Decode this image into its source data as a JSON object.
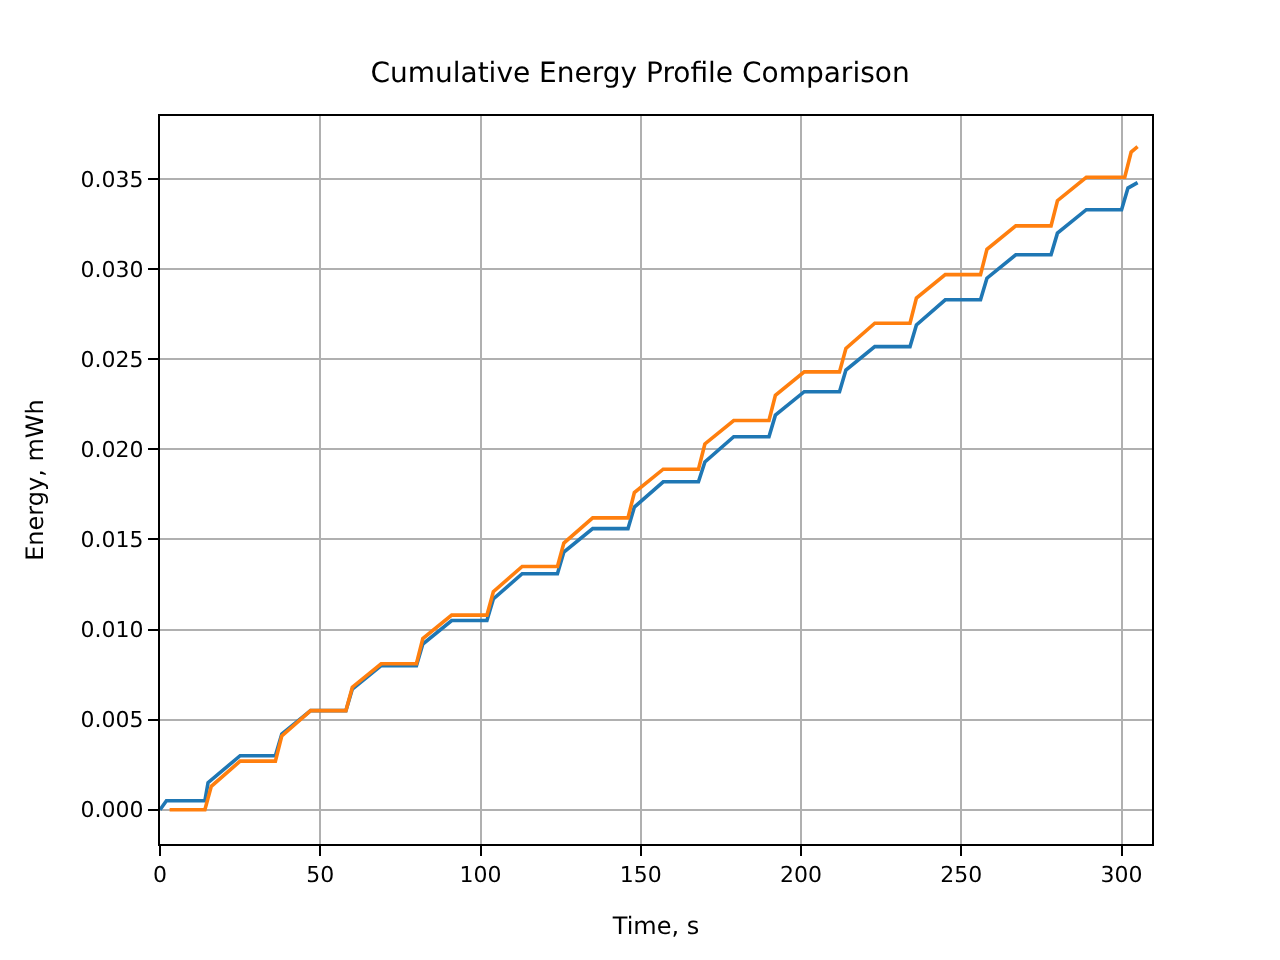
{
  "chart_data": {
    "type": "line",
    "title": "Cumulative Energy Profile Comparison",
    "xlabel": "Time, s",
    "ylabel": "Energy, mWh",
    "xlim": [
      0,
      309.5
    ],
    "ylim": [
      -0.0019,
      0.0385
    ],
    "xticks": [
      0,
      50,
      100,
      150,
      200,
      250,
      300
    ],
    "yticks": [
      {
        "value": 0,
        "label": "0.000"
      },
      {
        "value": 0.005,
        "label": "0.005"
      },
      {
        "value": 0.01,
        "label": "0.010"
      },
      {
        "value": 0.015,
        "label": "0.015"
      },
      {
        "value": 0.02,
        "label": "0.020"
      },
      {
        "value": 0.025,
        "label": "0.025"
      },
      {
        "value": 0.03,
        "label": "0.030"
      },
      {
        "value": 0.035,
        "label": "0.035"
      }
    ],
    "grid": true,
    "marker": "none",
    "line_style": "solid",
    "series": [
      {
        "color": "#1f77b4",
        "x": [
          0,
          2,
          14,
          15,
          25,
          36,
          38,
          47,
          58,
          60,
          69,
          80,
          82,
          91,
          102,
          104,
          113,
          124,
          126,
          135,
          146,
          148,
          157,
          168,
          170,
          179,
          190,
          192,
          201,
          212,
          214,
          223,
          234,
          236,
          245,
          256,
          258,
          267,
          278,
          280,
          289,
          300,
          302,
          305
        ],
        "values": [
          0,
          0.0005,
          0.0005,
          0.0015,
          0.003,
          0.003,
          0.0042,
          0.0055,
          0.0055,
          0.0067,
          0.008,
          0.008,
          0.0092,
          0.0105,
          0.0105,
          0.0117,
          0.0131,
          0.0131,
          0.0143,
          0.0156,
          0.0156,
          0.0168,
          0.0182,
          0.0182,
          0.0193,
          0.0207,
          0.0207,
          0.0219,
          0.0232,
          0.0232,
          0.0244,
          0.0257,
          0.0257,
          0.0269,
          0.0283,
          0.0283,
          0.0295,
          0.0308,
          0.0308,
          0.032,
          0.0333,
          0.0333,
          0.0345,
          0.0348
        ]
      },
      {
        "color": "#ff7f0e",
        "x": [
          3,
          14,
          16,
          25,
          36,
          38,
          47,
          58,
          60,
          69,
          80,
          82,
          91,
          102,
          104,
          113,
          124,
          126,
          135,
          146,
          148,
          157,
          168,
          170,
          179,
          190,
          192,
          201,
          212,
          214,
          223,
          234,
          236,
          245,
          256,
          258,
          267,
          278,
          280,
          289,
          301,
          303,
          305
        ],
        "values": [
          0,
          0,
          0.0013,
          0.0027,
          0.0027,
          0.0041,
          0.0055,
          0.0055,
          0.0068,
          0.0081,
          0.0081,
          0.0095,
          0.0108,
          0.0108,
          0.0121,
          0.0135,
          0.0135,
          0.0148,
          0.0162,
          0.0162,
          0.0176,
          0.0189,
          0.0189,
          0.0203,
          0.0216,
          0.0216,
          0.023,
          0.0243,
          0.0243,
          0.0256,
          0.027,
          0.027,
          0.0284,
          0.0297,
          0.0297,
          0.0311,
          0.0324,
          0.0324,
          0.0338,
          0.0351,
          0.0351,
          0.0365,
          0.0368
        ]
      }
    ]
  }
}
